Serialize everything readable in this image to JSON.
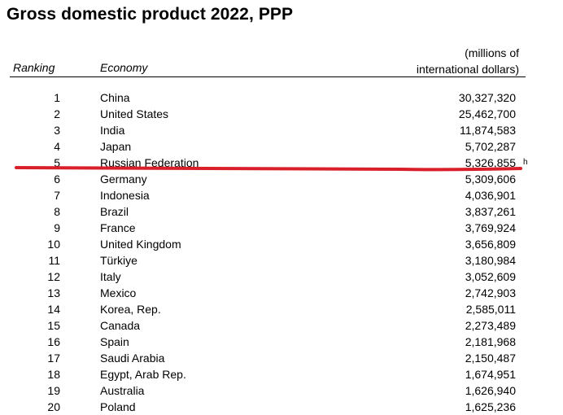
{
  "title": "Gross domestic product 2022, PPP",
  "headers": {
    "ranking": "Ranking",
    "economy": "Economy",
    "value_line1": "(millions of",
    "value_line2": "international dollars)"
  },
  "rows": [
    {
      "rank": "1",
      "economy": "China",
      "value": "30,327,320",
      "note": ""
    },
    {
      "rank": "2",
      "economy": "United States",
      "value": "25,462,700",
      "note": ""
    },
    {
      "rank": "3",
      "economy": "India",
      "value": "11,874,583",
      "note": ""
    },
    {
      "rank": "4",
      "economy": "Japan",
      "value": "5,702,287",
      "note": ""
    },
    {
      "rank": "5",
      "economy": "Russian Federation",
      "value": "5,326,855",
      "note": "h"
    },
    {
      "rank": "6",
      "economy": "Germany",
      "value": "5,309,606",
      "note": ""
    },
    {
      "rank": "7",
      "economy": "Indonesia",
      "value": "4,036,901",
      "note": ""
    },
    {
      "rank": "8",
      "economy": "Brazil",
      "value": "3,837,261",
      "note": ""
    },
    {
      "rank": "9",
      "economy": "France",
      "value": "3,769,924",
      "note": ""
    },
    {
      "rank": "10",
      "economy": "United Kingdom",
      "value": "3,656,809",
      "note": ""
    },
    {
      "rank": "11",
      "economy": "Türkiye",
      "value": "3,180,984",
      "note": ""
    },
    {
      "rank": "12",
      "economy": "Italy",
      "value": "3,052,609",
      "note": ""
    },
    {
      "rank": "13",
      "economy": "Mexico",
      "value": "2,742,903",
      "note": ""
    },
    {
      "rank": "14",
      "economy": "Korea, Rep.",
      "value": "2,585,011",
      "note": ""
    },
    {
      "rank": "15",
      "economy": "Canada",
      "value": "2,273,489",
      "note": ""
    },
    {
      "rank": "16",
      "economy": "Spain",
      "value": "2,181,968",
      "note": ""
    },
    {
      "rank": "17",
      "economy": "Saudi Arabia",
      "value": "2,150,487",
      "note": ""
    },
    {
      "rank": "18",
      "economy": "Egypt, Arab Rep.",
      "value": "1,674,951",
      "note": ""
    },
    {
      "rank": "19",
      "economy": "Australia",
      "value": "1,626,940",
      "note": ""
    },
    {
      "rank": "20",
      "economy": "Poland",
      "value": "1,625,236",
      "note": ""
    }
  ],
  "strikethrough": {
    "row_rank": "5",
    "color": "#d9202a"
  }
}
